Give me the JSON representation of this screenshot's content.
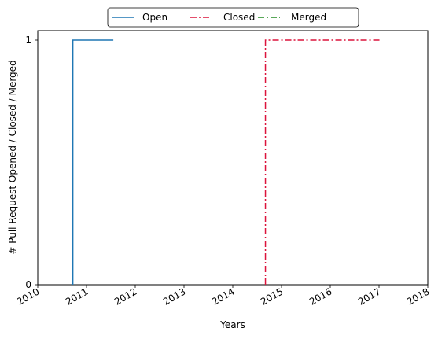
{
  "chart_data": {
    "type": "line",
    "xlabel": "Years",
    "ylabel": "# Pull Request Opened / Closed / Merged",
    "xlim": [
      2010,
      2018
    ],
    "ylim": [
      0,
      1
    ],
    "x_ticks": [
      "2010",
      "2011",
      "2012",
      "2013",
      "2014",
      "2015",
      "2016",
      "2017",
      "2018"
    ],
    "y_ticks": [
      "0",
      "1"
    ],
    "legend_position": "top-center, above plot",
    "series": [
      {
        "name": "Open",
        "color": "#1f77b4",
        "style": "solid",
        "x": [
          2010.72,
          2010.72,
          2011.55
        ],
        "y": [
          0,
          1,
          1
        ]
      },
      {
        "name": "Closed",
        "color": "#dc143c",
        "style": "dashdot",
        "x": [
          2014.67,
          2014.67,
          2017.05
        ],
        "y": [
          0,
          1,
          1
        ]
      },
      {
        "name": "Merged",
        "color": "#228b22",
        "style": "dashdot",
        "x": [],
        "y": []
      }
    ]
  }
}
